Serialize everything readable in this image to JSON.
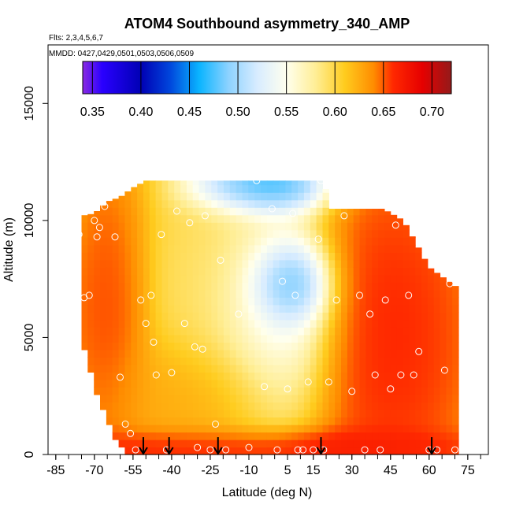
{
  "chart_data": {
    "type": "heatmap",
    "title": "ATOM4 Southbound asymmetry_340_AMP",
    "flights_note": "Flts: 2,3,4,5,6,7",
    "dates_note": "MMDD: 0427,0429,0501,0503,0506,0509",
    "xlabel": "Latitude (deg N)",
    "ylabel": "Altitude (m)",
    "xlim": [
      -88,
      83
    ],
    "ylim": [
      0,
      17500
    ],
    "x_ticks": [
      -85,
      -70,
      -55,
      -40,
      -25,
      -10,
      5,
      15,
      30,
      45,
      60,
      75
    ],
    "x_tick_labels": [
      "-85",
      "-70",
      "-55",
      "-40",
      "-25",
      "-10",
      "5",
      "15",
      "30",
      "45",
      "60",
      "75"
    ],
    "y_ticks": [
      0,
      5000,
      10000,
      15000
    ],
    "y_tick_labels": [
      "0",
      "5000",
      "10000",
      "15000"
    ],
    "colorbar": {
      "min": 0.34,
      "max": 0.72,
      "ticks": [
        0.35,
        0.4,
        0.45,
        0.5,
        0.55,
        0.6,
        0.65,
        0.7
      ],
      "tick_labels": [
        "0.35",
        "0.40",
        "0.45",
        "0.50",
        "0.55",
        "0.60",
        "0.65",
        "0.70"
      ],
      "stops": [
        {
          "v": 0.34,
          "c": "#8a2be2"
        },
        {
          "v": 0.36,
          "c": "#2a00ff"
        },
        {
          "v": 0.4,
          "c": "#0000b4"
        },
        {
          "v": 0.43,
          "c": "#0046dc"
        },
        {
          "v": 0.46,
          "c": "#0ab4ff"
        },
        {
          "v": 0.49,
          "c": "#8cd2ff"
        },
        {
          "v": 0.52,
          "c": "#d8ecff"
        },
        {
          "v": 0.55,
          "c": "#ffffee"
        },
        {
          "v": 0.58,
          "c": "#ffee96"
        },
        {
          "v": 0.61,
          "c": "#ffcc1e"
        },
        {
          "v": 0.64,
          "c": "#ff8c00"
        },
        {
          "v": 0.66,
          "c": "#ff2800"
        },
        {
          "v": 0.69,
          "c": "#e60000"
        },
        {
          "v": 0.72,
          "c": "#941a1a"
        }
      ]
    },
    "coverage": {
      "lat_min": -75,
      "lat_max": 70,
      "top_altitude": [
        [
          -75,
          10200
        ],
        [
          -70,
          10300
        ],
        [
          -65,
          10800
        ],
        [
          -60,
          11000
        ],
        [
          -55,
          11400
        ],
        [
          -50,
          11700
        ],
        [
          -25,
          11700
        ],
        [
          0,
          11700
        ],
        [
          18,
          11700
        ],
        [
          20,
          11300
        ],
        [
          22,
          10500
        ],
        [
          42,
          10500
        ],
        [
          50,
          10000
        ],
        [
          60,
          8000
        ],
        [
          70,
          7200
        ]
      ],
      "bottom_altitude": [
        [
          -75,
          5000
        ],
        [
          -70,
          3000
        ],
        [
          -65,
          1500
        ],
        [
          -60,
          600
        ],
        [
          -55,
          0
        ],
        [
          70,
          0
        ]
      ]
    },
    "regions": [
      {
        "name": "upper-blue-band",
        "lat": -5,
        "alt": 11500,
        "lat_radius": 20,
        "alt_radius": 1000,
        "value": 0.43
      },
      {
        "name": "central-blue-core",
        "lat": 5,
        "alt": 7200,
        "lat_radius": 12,
        "alt_radius": 1400,
        "value": 0.41
      },
      {
        "name": "light-blue-wedge",
        "lat": 0,
        "alt": 6000,
        "lat_radius": 18,
        "alt_radius": 3600,
        "value": 0.52
      },
      {
        "name": "yellow-center",
        "lat": -20,
        "alt": 7000,
        "lat_radius": 22,
        "alt_radius": 4000,
        "value": 0.59
      },
      {
        "name": "red-north",
        "lat": 45,
        "alt": 5000,
        "lat_radius": 26,
        "alt_radius": 6000,
        "value": 0.67
      },
      {
        "name": "red-south-west",
        "lat": -65,
        "alt": 6000,
        "lat_radius": 12,
        "alt_radius": 5000,
        "value": 0.66
      },
      {
        "name": "red-surface",
        "lat": -10,
        "alt": 300,
        "lat_radius": 70,
        "alt_radius": 700,
        "value": 0.68
      },
      {
        "name": "orange-lower",
        "lat": -30,
        "alt": 2500,
        "lat_radius": 30,
        "alt_radius": 2000,
        "value": 0.63
      }
    ],
    "observation_points": [
      [
        -82,
        9500
      ],
      [
        -80,
        9300
      ],
      [
        -78,
        4300
      ],
      [
        -76,
        9400
      ],
      [
        -74,
        6700
      ],
      [
        -72,
        6800
      ],
      [
        -70,
        10000
      ],
      [
        -69,
        9300
      ],
      [
        -68,
        9700
      ],
      [
        -66,
        10600
      ],
      [
        -62,
        9300
      ],
      [
        -60,
        3300
      ],
      [
        -58,
        1300
      ],
      [
        -56,
        900
      ],
      [
        -54,
        200
      ],
      [
        -52,
        6600
      ],
      [
        -50,
        5600
      ],
      [
        -48,
        6800
      ],
      [
        -47,
        4800
      ],
      [
        -46,
        3400
      ],
      [
        -44,
        9400
      ],
      [
        -42,
        200
      ],
      [
        -40,
        3500
      ],
      [
        -38,
        10400
      ],
      [
        -35,
        5600
      ],
      [
        -33,
        9900
      ],
      [
        -31,
        4600
      ],
      [
        -30,
        300
      ],
      [
        -28,
        4500
      ],
      [
        -27,
        10200
      ],
      [
        -25,
        200
      ],
      [
        -23,
        1300
      ],
      [
        -21,
        8300
      ],
      [
        -19,
        200
      ],
      [
        -14,
        6000
      ],
      [
        -10,
        300
      ],
      [
        -7,
        11700
      ],
      [
        -4,
        2900
      ],
      [
        -1,
        10500
      ],
      [
        1,
        200
      ],
      [
        3,
        7400
      ],
      [
        5,
        2800
      ],
      [
        7,
        10300
      ],
      [
        8,
        6800
      ],
      [
        9,
        200
      ],
      [
        11,
        200
      ],
      [
        13,
        3100
      ],
      [
        15,
        200
      ],
      [
        17,
        9200
      ],
      [
        18,
        11700
      ],
      [
        19,
        200
      ],
      [
        21,
        3100
      ],
      [
        24,
        6600
      ],
      [
        27,
        10200
      ],
      [
        30,
        2700
      ],
      [
        33,
        6800
      ],
      [
        35,
        200
      ],
      [
        37,
        6000
      ],
      [
        39,
        3400
      ],
      [
        41,
        200
      ],
      [
        43,
        6600
      ],
      [
        45,
        2800
      ],
      [
        47,
        9800
      ],
      [
        49,
        3400
      ],
      [
        52,
        6800
      ],
      [
        54,
        3400
      ],
      [
        56,
        4400
      ],
      [
        60,
        200
      ],
      [
        63,
        200
      ],
      [
        66,
        3600
      ],
      [
        68,
        7300
      ],
      [
        70,
        200
      ]
    ],
    "flight_markers_lat": [
      -51,
      -41,
      -22,
      18,
      61
    ]
  }
}
